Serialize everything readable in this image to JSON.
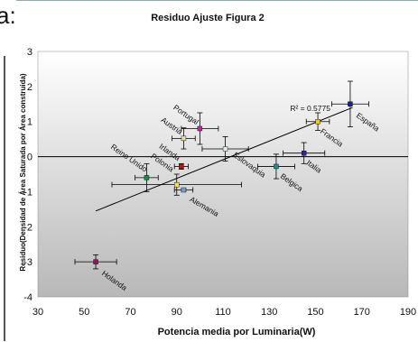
{
  "page": {
    "cut_text": "a:"
  },
  "chart_data": {
    "type": "scatter",
    "title": "Residuo Ajuste Figura 2",
    "xlabel": "Potencia media por Luminaria(W)",
    "ylabel": "Residuo(Densidad de Área Saturada por Área construida)",
    "xlim": [
      30,
      190
    ],
    "ylim": [
      -4,
      3
    ],
    "xticks": [
      30,
      50,
      70,
      90,
      110,
      130,
      150,
      170,
      190
    ],
    "yticks": [
      -4,
      -3,
      -2,
      -1,
      0,
      1,
      2,
      3
    ],
    "grid": false,
    "points": [
      {
        "label": "España",
        "x": 165,
        "y": 1.5,
        "xerr": 8,
        "yerr": 0.65,
        "color": "#1a1aa0"
      },
      {
        "label": "Francia",
        "x": 151,
        "y": 1.0,
        "xerr": 5,
        "yerr": 0.25,
        "color": "#e8d21a"
      },
      {
        "label": "Portugal",
        "x": 100,
        "y": 0.8,
        "xerr": 8,
        "yerr": 0.45,
        "color": "#cc22aa"
      },
      {
        "label": "Austria",
        "x": 93,
        "y": 0.52,
        "xerr": 5,
        "yerr": 0.3,
        "color": "#e8e0a0"
      },
      {
        "label": "Eslovaquia",
        "x": 111,
        "y": 0.22,
        "xerr": 10,
        "yerr": 0.35,
        "color": "#d8ecec"
      },
      {
        "label": "Italia",
        "x": 145,
        "y": 0.1,
        "xerr": 9,
        "yerr": 0.3,
        "color": "#3a2090"
      },
      {
        "label": "Irlanda",
        "x": 92,
        "y": -0.28,
        "xerr": 3,
        "yerr": 0.08,
        "color": "#aa1a1a"
      },
      {
        "label": "Belgica",
        "x": 133,
        "y": -0.28,
        "xerr": 8,
        "yerr": 0.35,
        "color": "#2a8a8a"
      },
      {
        "label": "Reino Unido",
        "x": 77,
        "y": -0.6,
        "xerr": 5,
        "yerr": 0.4,
        "color": "#1a8a4a"
      },
      {
        "label": "Polonia",
        "x": 90,
        "y": -0.8,
        "xerr": 28,
        "yerr": 0.3,
        "color": "#f0e05a"
      },
      {
        "label": "Alemania",
        "x": 93,
        "y": -0.95,
        "xerr": 4,
        "yerr": 0.04,
        "color": "#7aa0cc"
      },
      {
        "label": "Holanda",
        "x": 55,
        "y": -3.0,
        "xerr": 9,
        "yerr": 0.2,
        "color": "#8a1a5a"
      }
    ],
    "trendline": {
      "x": [
        55,
        166
      ],
      "y": [
        -1.55,
        1.4
      ],
      "r2_label": "R² = 0.5775"
    }
  }
}
